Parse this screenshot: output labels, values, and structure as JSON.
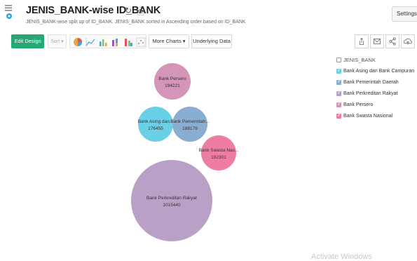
{
  "header": {
    "title": "JENIS_BANK-wise ID_BANK",
    "subtitle": "JENIS_BANK-wise split up of ID_BANK. JENIS_BANK sorted in Ascending order based on ID_BANK",
    "settings_label": "Settings",
    "app_icon": "report-icon",
    "refresh_icon": "refresh-icon",
    "save_icon": "save-icon"
  },
  "toolbar": {
    "edit_design_label": "Edit Design",
    "sort_label": "Sort ▾",
    "more_charts_label": "More Charts ▾",
    "underlying_data_label": "Underlying Data",
    "chart_icons": [
      "pie-chart-icon",
      "line-chart-icon",
      "bar-chart-icon",
      "stacked-bar-icon",
      "horizontal-bar-icon",
      "scatter-icon"
    ],
    "right_icons": [
      "export-icon",
      "email-icon",
      "share-icon",
      "publish-icon"
    ]
  },
  "legend": {
    "title": "JENIS_BANK",
    "items": [
      {
        "label": "Bank Asing dan Bank Campuran",
        "color": "#6ad0e8"
      },
      {
        "label": "Bank Pemerintah Daerah",
        "color": "#8aaed2"
      },
      {
        "label": "Bank Perkreditan Rakyat",
        "color": "#b8a0c6"
      },
      {
        "label": "Bank Persero",
        "color": "#d495b8"
      },
      {
        "label": "Bank Swasta Nasional",
        "color": "#ee7da3"
      }
    ]
  },
  "chart_data": {
    "type": "bubble",
    "title": "JENIS_BANK-wise ID_BANK",
    "series": [
      {
        "name": "Bank Persero",
        "label": "Bank Persero",
        "value": 194221,
        "color": "#d495b8"
      },
      {
        "name": "Bank Asing dan Bank Campuran",
        "label": "Bank Asing dan...",
        "value": 176455,
        "color": "#6ad0e8"
      },
      {
        "name": "Bank Pemerintah Daerah",
        "label": "Bank Pemerintah...",
        "value": 188179,
        "color": "#8aaed2"
      },
      {
        "name": "Bank Swasta Nasional",
        "label": "Bank Swasta Nas...",
        "value": 192301,
        "color": "#ee7da3"
      },
      {
        "name": "Bank Perkreditan Rakyat",
        "label": "Bank Perkreditan Rakyat",
        "value": 1015440,
        "color": "#b8a0c6"
      }
    ]
  },
  "watermark": {
    "text": "Activate Windows"
  }
}
